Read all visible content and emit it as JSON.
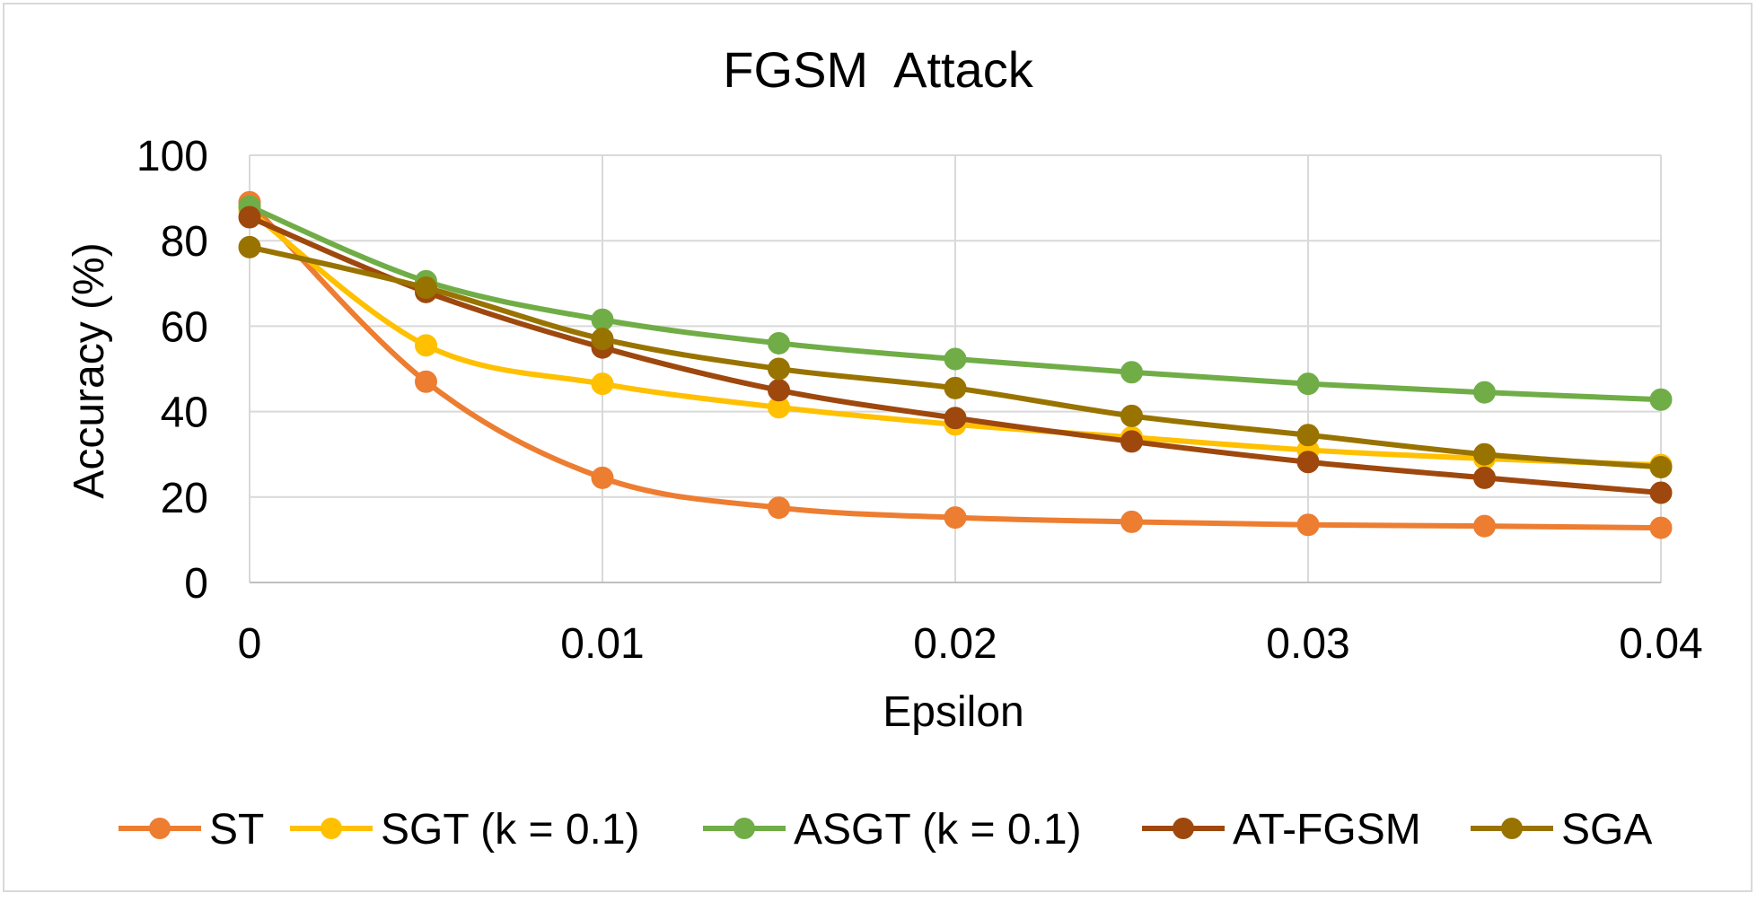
{
  "chart_data": {
    "type": "line",
    "title": "FGSM  Attack",
    "xlabel": "Epsilon",
    "ylabel": "Accuracy (%)",
    "xlim": [
      0,
      0.04
    ],
    "ylim": [
      0,
      100
    ],
    "x_ticks": [
      0,
      0.01,
      0.02,
      0.03,
      0.04
    ],
    "x_tick_labels": [
      "0",
      "0.01",
      "0.02",
      "0.03",
      "0.04"
    ],
    "y_ticks": [
      0,
      20,
      40,
      60,
      80,
      100
    ],
    "y_tick_labels": [
      "0",
      "20",
      "40",
      "60",
      "80",
      "100"
    ],
    "grid": true,
    "legend_position": "bottom",
    "x": [
      0,
      0.005,
      0.01,
      0.015,
      0.02,
      0.025,
      0.03,
      0.035,
      0.04
    ],
    "series": [
      {
        "name": "ST",
        "color": "#ED7D31",
        "values": [
          89,
          47,
          24.5,
          17.5,
          15.2,
          14.2,
          13.5,
          13.2,
          12.8
        ]
      },
      {
        "name": "SGT (k = 0.1)",
        "color": "#FFC000",
        "values": [
          87,
          55.5,
          46.5,
          41,
          37,
          34,
          31,
          29,
          27.5
        ]
      },
      {
        "name": "ASGT (k = 0.1)",
        "color": "#70AD47",
        "values": [
          88,
          70.5,
          61.5,
          56,
          52.3,
          49.2,
          46.5,
          44.5,
          42.8
        ]
      },
      {
        "name": "AT-FGSM",
        "color": "#9E480E",
        "values": [
          85.5,
          68,
          55,
          45,
          38.5,
          33,
          28.2,
          24.5,
          21
        ]
      },
      {
        "name": "SGA",
        "color": "#997300",
        "values": [
          78.5,
          69,
          57,
          50,
          45.5,
          39,
          34.5,
          30,
          27
        ]
      }
    ]
  }
}
